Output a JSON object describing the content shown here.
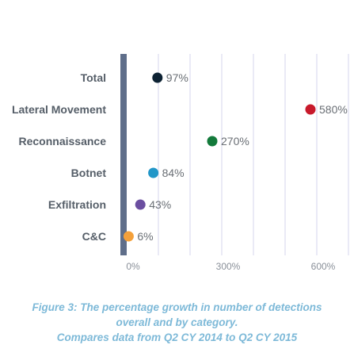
{
  "chart_data": {
    "type": "scatter",
    "categories": [
      "Total",
      "Lateral Movement",
      "Reconnaissance",
      "Botnet",
      "Exfiltration",
      "C&C"
    ],
    "values": [
      97,
      580,
      270,
      84,
      43,
      6
    ],
    "value_labels": [
      "97%",
      "580%",
      "270%",
      "84%",
      "43%",
      "6%"
    ],
    "colors": [
      "#0d2233",
      "#c8192b",
      "#137a3b",
      "#2196c8",
      "#6b4ea0",
      "#f4a03a"
    ],
    "xlim": [
      0,
      700
    ],
    "xticks": [
      0,
      300,
      600
    ],
    "xtick_labels": [
      "0%",
      "300%",
      "600%"
    ],
    "grid": true,
    "axis_bar_color": "#5f6e8a",
    "grid_color": "#d4d4ec"
  },
  "caption": {
    "lines": [
      "Figure 3: The percentage growth in number of detections",
      "overall and by category.",
      "Compares data from Q2 CY 2014 to Q2 CY 2015"
    ],
    "color": "#7db9d8"
  }
}
